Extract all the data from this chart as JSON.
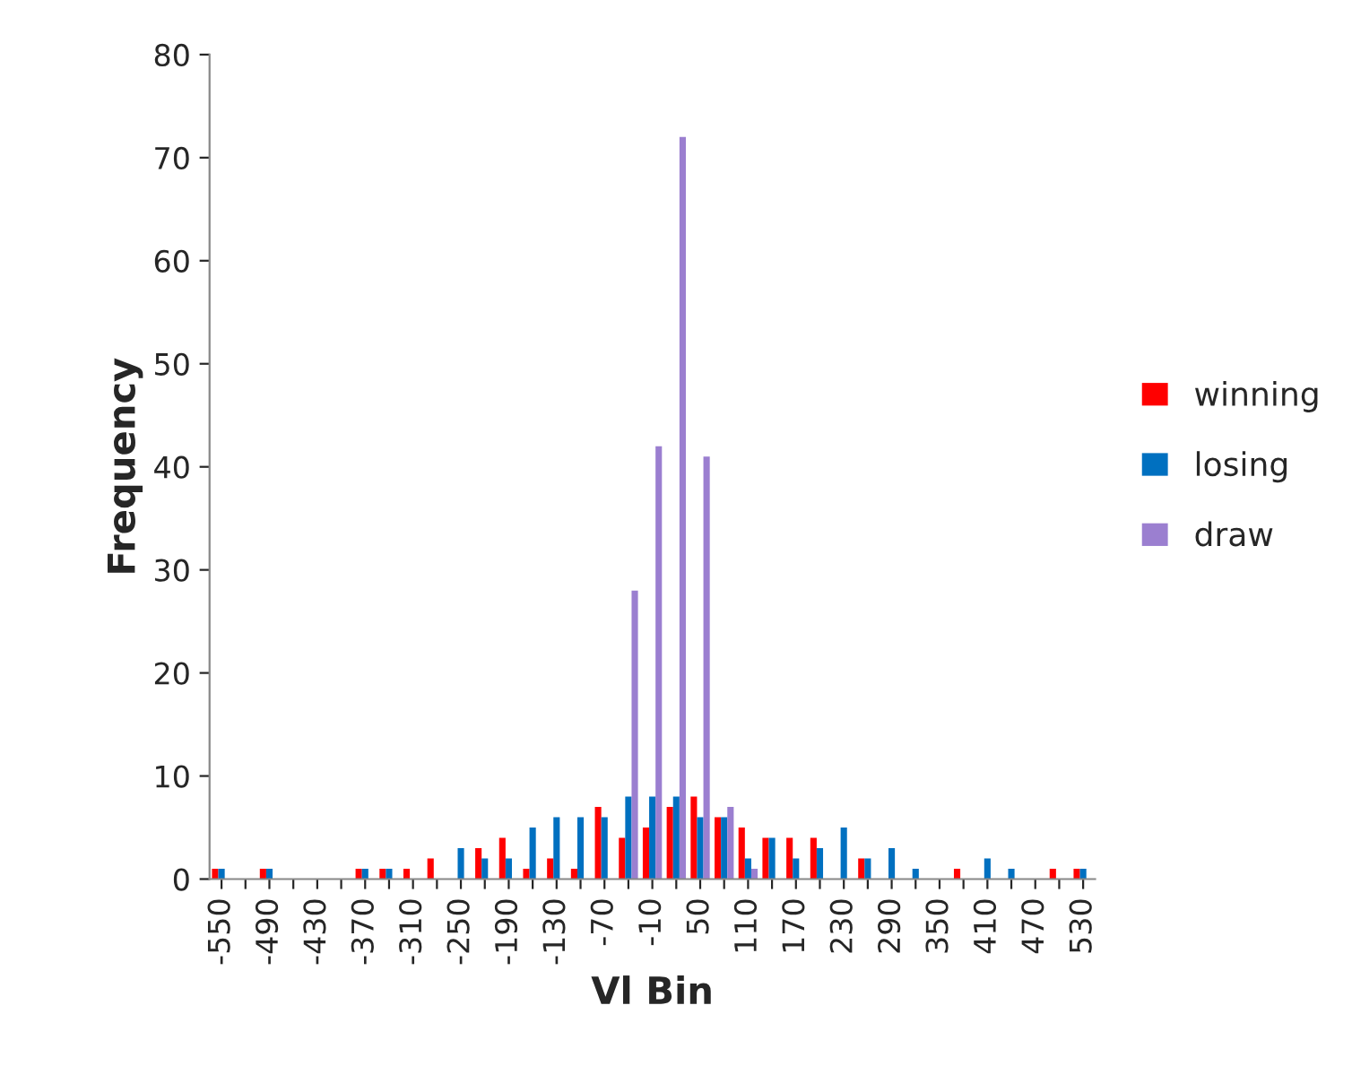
{
  "chart_data": {
    "type": "bar",
    "xlabel": "Vl Bin",
    "ylabel": "Frequency",
    "categories": [
      "-550",
      null,
      "-490",
      null,
      "-430",
      null,
      "-370",
      null,
      "-310",
      null,
      "-250",
      null,
      "-190",
      null,
      "-130",
      null,
      "-70",
      null,
      "-10",
      null,
      "50",
      null,
      "110",
      null,
      "170",
      null,
      "230",
      null,
      "290",
      null,
      "350",
      null,
      "410",
      null,
      "470",
      null,
      "530"
    ],
    "series": [
      {
        "name": "winning",
        "color": "#ff0000",
        "values": [
          1,
          null,
          1,
          null,
          null,
          null,
          1,
          1,
          1,
          2,
          null,
          3,
          4,
          1,
          2,
          1,
          7,
          4,
          5,
          7,
          8,
          6,
          5,
          4,
          4,
          4,
          null,
          2,
          null,
          null,
          null,
          1,
          null,
          null,
          null,
          1,
          1
        ]
      },
      {
        "name": "losing",
        "color": "#0070c0",
        "values": [
          1,
          null,
          1,
          null,
          null,
          null,
          1,
          1,
          null,
          null,
          3,
          2,
          2,
          5,
          6,
          6,
          6,
          8,
          8,
          8,
          6,
          6,
          2,
          4,
          2,
          3,
          5,
          2,
          3,
          1,
          null,
          null,
          2,
          1,
          null,
          null,
          1
        ]
      },
      {
        "name": "draw",
        "color": "#9b7fd0",
        "values": [
          null,
          null,
          null,
          null,
          null,
          null,
          null,
          null,
          null,
          null,
          null,
          null,
          null,
          null,
          null,
          null,
          null,
          28,
          42,
          72,
          41,
          7,
          1,
          null,
          null,
          null,
          null,
          null,
          null,
          null,
          null,
          null,
          null,
          null,
          null,
          null,
          null
        ]
      }
    ],
    "ylim": [
      0,
      80
    ],
    "yticks": [
      0,
      10,
      20,
      30,
      40,
      50,
      60,
      70,
      80
    ],
    "grid": false,
    "legend": "right"
  }
}
